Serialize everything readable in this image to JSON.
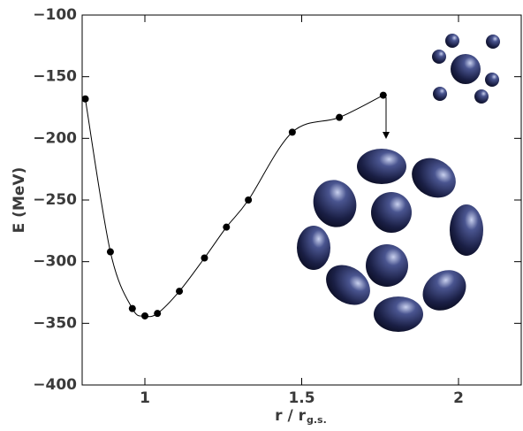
{
  "chart_data": {
    "type": "line",
    "y_label": "E (MeV)",
    "x_label": "r / r",
    "x_label_subscript": "g.s.",
    "x": [
      0.81,
      0.89,
      0.96,
      1.0,
      1.04,
      1.11,
      1.19,
      1.26,
      1.33,
      1.47,
      1.62,
      1.76
    ],
    "series": [
      {
        "color": "#000000",
        "values": [
          -168,
          -292,
          -338,
          -344,
          -342,
          -324,
          -297,
          -272,
          -250,
          -195,
          -183,
          -165
        ]
      }
    ],
    "xlim": [
      0.8,
      2.2
    ],
    "xticks": [
      1,
      1.5,
      2
    ],
    "ylim": [
      -400,
      -100
    ],
    "yticks": [
      {
        "value": -100,
        "label": "−100"
      },
      {
        "value": -150,
        "label": "−150"
      },
      {
        "value": -200,
        "label": "−200"
      },
      {
        "value": -250,
        "label": "−250"
      },
      {
        "value": -300,
        "label": "−300"
      },
      {
        "value": -350,
        "label": "−350"
      },
      {
        "value": -400,
        "label": "−400"
      }
    ]
  }
}
